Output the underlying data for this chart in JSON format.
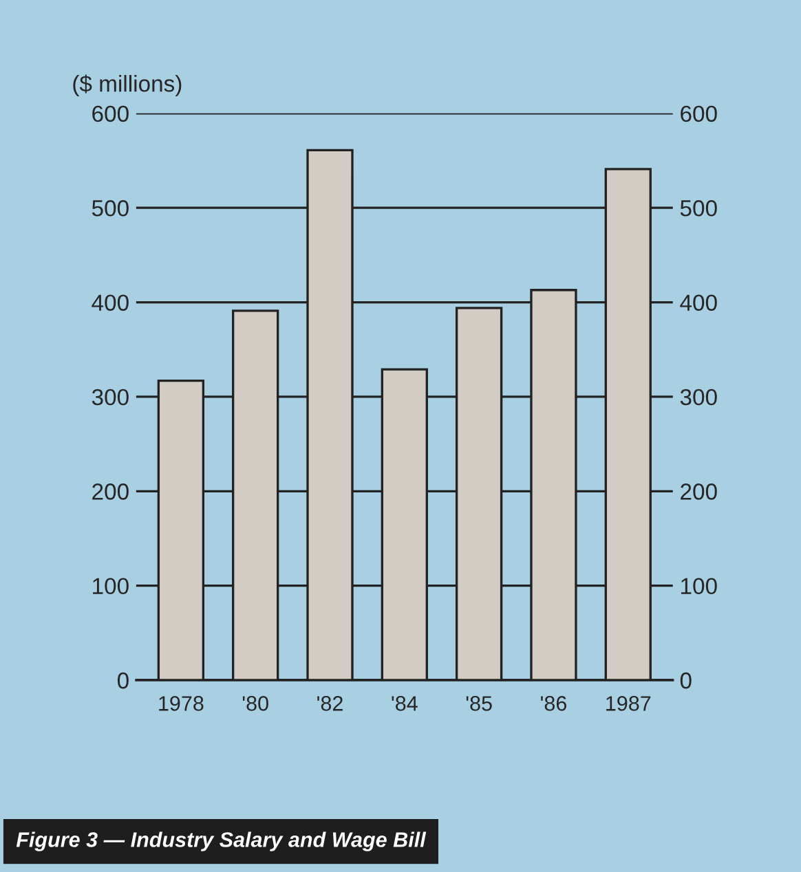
{
  "chart_data": {
    "type": "bar",
    "ylabel": "($ millions)",
    "annotations": [
      "Figure 3 — Industry Salary and Wage Bill"
    ],
    "categories": [
      "1978",
      "'80",
      "'82",
      "'84",
      "'85",
      "'86",
      "1987"
    ],
    "values": [
      317,
      391,
      561,
      329,
      394,
      413,
      541
    ],
    "color": "#d2ccc5",
    "ylim": [
      0,
      600
    ],
    "yticks": [
      0,
      100,
      200,
      300,
      400,
      500,
      600
    ],
    "y2lim": [
      0,
      600
    ],
    "y2ticks": [
      0,
      100,
      200,
      300,
      400,
      500,
      600
    ],
    "grid": "y"
  }
}
